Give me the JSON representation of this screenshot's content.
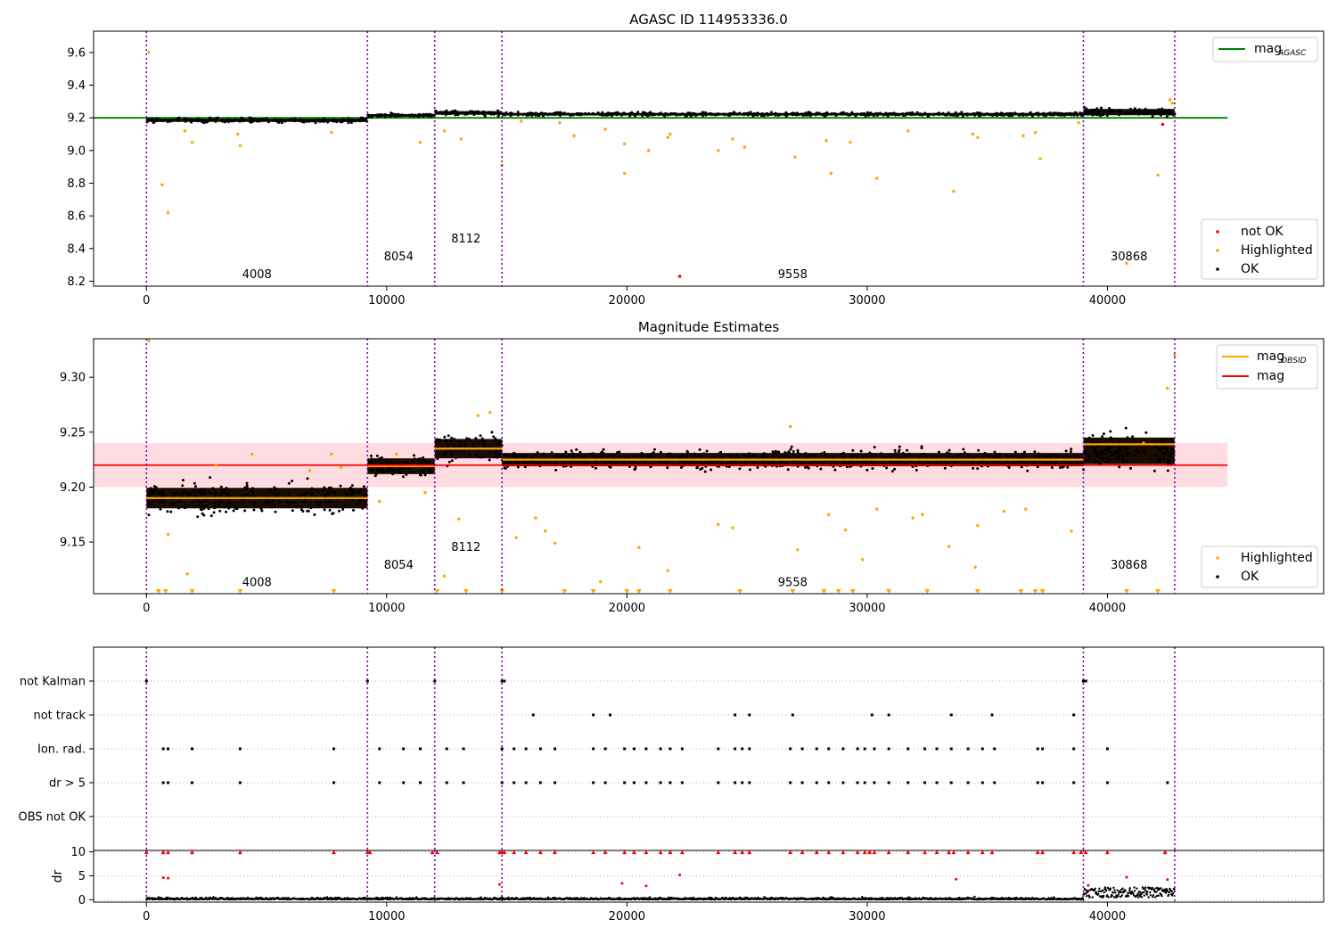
{
  "figure": {
    "background": "#ffffff"
  },
  "chart_data": [
    {
      "id": "agasc",
      "type": "scatter",
      "title": "AGASC ID 114953336.0",
      "xlim": [
        -2200,
        49000
      ],
      "ylim": [
        8.17,
        9.73
      ],
      "x_ticks": [
        0,
        10000,
        20000,
        30000,
        40000
      ],
      "y_ticks": [
        8.2,
        8.4,
        8.6,
        8.8,
        9.0,
        9.2,
        9.4,
        9.6
      ],
      "y_decimals": 1,
      "obs_boundaries": [
        0,
        9200,
        12000,
        14800,
        39000,
        42800
      ],
      "obsid_labels": [
        {
          "text": "4008",
          "x": 4600,
          "y": 8.24
        },
        {
          "text": "8054",
          "x": 10500,
          "y": 8.35
        },
        {
          "text": "8112",
          "x": 13300,
          "y": 8.46
        },
        {
          "text": "9558",
          "x": 26900,
          "y": 8.24
        },
        {
          "text": "30868",
          "x": 40900,
          "y": 8.35
        }
      ],
      "ok_segments": [
        {
          "x0": 0,
          "x1": 9200,
          "center": 9.185,
          "half_width": 0.018
        },
        {
          "x0": 9200,
          "x1": 12000,
          "center": 9.215,
          "half_width": 0.014
        },
        {
          "x0": 12000,
          "x1": 14800,
          "center": 9.23,
          "half_width": 0.02
        },
        {
          "x0": 14800,
          "x1": 39000,
          "center": 9.222,
          "half_width": 0.014
        },
        {
          "x0": 39000,
          "x1": 42800,
          "center": 9.235,
          "half_width": 0.035
        }
      ],
      "highlighted_points": [
        [
          100,
          9.6
        ],
        [
          650,
          8.79
        ],
        [
          900,
          8.62
        ],
        [
          1600,
          9.12
        ],
        [
          1900,
          9.05
        ],
        [
          3800,
          9.1
        ],
        [
          3900,
          9.03
        ],
        [
          7700,
          9.11
        ],
        [
          11400,
          9.05
        ],
        [
          12400,
          9.12
        ],
        [
          13100,
          9.07
        ],
        [
          14800,
          8.91
        ],
        [
          15600,
          9.18
        ],
        [
          17200,
          9.17
        ],
        [
          17800,
          9.09
        ],
        [
          19100,
          9.13
        ],
        [
          19900,
          9.04
        ],
        [
          19900,
          8.86
        ],
        [
          20900,
          9.0
        ],
        [
          21700,
          9.08
        ],
        [
          21800,
          9.1
        ],
        [
          23800,
          9.0
        ],
        [
          24400,
          9.07
        ],
        [
          24900,
          9.02
        ],
        [
          27000,
          8.96
        ],
        [
          28300,
          9.06
        ],
        [
          28500,
          8.86
        ],
        [
          29300,
          9.05
        ],
        [
          30400,
          8.83
        ],
        [
          31700,
          9.12
        ],
        [
          33600,
          8.75
        ],
        [
          34400,
          9.1
        ],
        [
          34600,
          9.08
        ],
        [
          36500,
          9.09
        ],
        [
          37000,
          9.11
        ],
        [
          37200,
          8.95
        ],
        [
          38800,
          9.17
        ],
        [
          40800,
          8.31
        ],
        [
          42100,
          8.85
        ],
        [
          42600,
          9.31
        ],
        [
          42700,
          9.29
        ]
      ],
      "not_ok_points": [
        [
          22200,
          8.23
        ],
        [
          42300,
          9.16
        ]
      ],
      "reference_lines": [
        {
          "label": "mag",
          "subscript": "AGASC",
          "y": 9.2,
          "x_range": [
            -2200,
            45000
          ],
          "color": "#008000"
        }
      ],
      "legend_upper": {
        "placement": "top-right",
        "entries": [
          {
            "label": "mag",
            "subscript": "AGASC",
            "color": "#008000"
          }
        ]
      },
      "legend_lower": {
        "placement": "bottom-right",
        "entries": [
          {
            "label": "not OK",
            "color": "#ff0000"
          },
          {
            "label": "Highlighted",
            "color": "#ffa500"
          },
          {
            "label": "OK",
            "color": "#000000"
          }
        ]
      }
    },
    {
      "id": "estimates",
      "type": "scatter",
      "title": "Magnitude Estimates",
      "xlim": [
        -2200,
        49000
      ],
      "ylim": [
        9.103,
        9.335
      ],
      "x_ticks": [
        0,
        10000,
        20000,
        30000,
        40000
      ],
      "y_ticks": [
        9.15,
        9.2,
        9.25,
        9.3
      ],
      "y_decimals": 2,
      "obs_boundaries": [
        0,
        9200,
        12000,
        14800,
        39000,
        42800
      ],
      "obsid_labels": [
        {
          "text": "4008",
          "x": 4600,
          "y": 9.113
        },
        {
          "text": "8054",
          "x": 10500,
          "y": 9.129
        },
        {
          "text": "8112",
          "x": 13300,
          "y": 9.145
        },
        {
          "text": "9558",
          "x": 26900,
          "y": 9.113
        },
        {
          "text": "30868",
          "x": 40900,
          "y": 9.129
        }
      ],
      "ok_segments": [
        {
          "x0": 0,
          "x1": 9200,
          "center": 9.19,
          "half_width": 0.017
        },
        {
          "x0": 9200,
          "x1": 12000,
          "center": 9.219,
          "half_width": 0.013
        },
        {
          "x0": 12000,
          "x1": 14800,
          "center": 9.235,
          "half_width": 0.016
        },
        {
          "x0": 14800,
          "x1": 39000,
          "center": 9.225,
          "half_width": 0.011
        },
        {
          "x0": 39000,
          "x1": 42800,
          "center": 9.233,
          "half_width": 0.022
        }
      ],
      "obsid_means": [
        [
          0,
          9200,
          9.19
        ],
        [
          9200,
          12000,
          9.219
        ],
        [
          12000,
          14800,
          9.235
        ],
        [
          14800,
          39000,
          9.225
        ],
        [
          39000,
          42800,
          9.239
        ]
      ],
      "mag_band": {
        "y": 9.22,
        "low": 9.2,
        "high": 9.24,
        "x_range": [
          -2200,
          45000
        ],
        "fill": "#ffc0c8"
      },
      "highlighted_points": [
        [
          100,
          9.333
        ],
        [
          900,
          9.157
        ],
        [
          1700,
          9.121
        ],
        [
          2900,
          9.22
        ],
        [
          4400,
          9.23
        ],
        [
          6800,
          9.215
        ],
        [
          7700,
          9.23
        ],
        [
          8100,
          9.218
        ],
        [
          9700,
          9.187
        ],
        [
          10400,
          9.23
        ],
        [
          11600,
          9.195
        ],
        [
          12400,
          9.119
        ],
        [
          13000,
          9.171
        ],
        [
          13800,
          9.265
        ],
        [
          14300,
          9.268
        ],
        [
          15400,
          9.154
        ],
        [
          16200,
          9.172
        ],
        [
          16600,
          9.16
        ],
        [
          17000,
          9.149
        ],
        [
          18900,
          9.114
        ],
        [
          20500,
          9.145
        ],
        [
          21700,
          9.124
        ],
        [
          23800,
          9.166
        ],
        [
          24400,
          9.163
        ],
        [
          26800,
          9.255
        ],
        [
          27100,
          9.143
        ],
        [
          28400,
          9.175
        ],
        [
          29100,
          9.161
        ],
        [
          29800,
          9.134
        ],
        [
          30400,
          9.18
        ],
        [
          31900,
          9.172
        ],
        [
          32300,
          9.175
        ],
        [
          33400,
          9.146
        ],
        [
          34600,
          9.165
        ],
        [
          34500,
          9.127
        ],
        [
          35700,
          9.178
        ],
        [
          36600,
          9.18
        ],
        [
          38500,
          9.16
        ],
        [
          41500,
          9.24
        ],
        [
          42500,
          9.29
        ],
        [
          42800,
          9.32
        ]
      ],
      "floor_markers": [
        500,
        800,
        1900,
        3900,
        7800,
        12100,
        13300,
        14800,
        17400,
        18600,
        20000,
        20500,
        21800,
        24700,
        26900,
        28200,
        28800,
        29400,
        30900,
        32500,
        34600,
        36400,
        37000,
        37300,
        40800,
        42100
      ],
      "legend_upper": {
        "placement": "top-right",
        "entries": [
          {
            "label": "mag",
            "subscript": "OBSID",
            "color": "#ffa500"
          },
          {
            "label": "mag",
            "subscript": "",
            "color": "#ff0000"
          }
        ]
      },
      "legend_lower": {
        "placement": "bottom-right",
        "entries": [
          {
            "label": "Highlighted",
            "color": "#ffa500"
          },
          {
            "label": "OK",
            "color": "#000000"
          }
        ]
      }
    },
    {
      "id": "flags",
      "type": "scatter",
      "title": "",
      "xlim": [
        -2200,
        49000
      ],
      "categories": [
        "not Kalman",
        "not track",
        "Ion. rad.",
        "dr > 5",
        "OBS not OK"
      ],
      "obs_boundaries": [
        0,
        9200,
        12000,
        14800,
        39000,
        42800
      ],
      "flag_points": {
        "not Kalman": [
          0,
          9200,
          12000,
          14800,
          14900,
          39000,
          39100
        ],
        "not track": [
          16100,
          18600,
          19300,
          24500,
          25100,
          26900,
          30200,
          30900,
          33500,
          35200,
          38600
        ],
        "Ion. rad.": [
          700,
          900,
          1900,
          3900,
          7800,
          9700,
          10700,
          11400,
          12500,
          13200,
          14800,
          15300,
          15800,
          16400,
          17000,
          18600,
          19100,
          19900,
          20300,
          20800,
          21400,
          21800,
          22300,
          23800,
          24500,
          24800,
          25100,
          26800,
          27300,
          27900,
          28400,
          29000,
          29600,
          29900,
          30300,
          30900,
          31700,
          32400,
          32900,
          33500,
          34200,
          34800,
          35300,
          37100,
          37300,
          38600,
          40000
        ],
        "dr > 5": [
          700,
          900,
          1900,
          3900,
          7800,
          9700,
          10700,
          11400,
          12500,
          13200,
          14800,
          15300,
          15800,
          16400,
          17000,
          18600,
          19100,
          19900,
          20300,
          20800,
          21400,
          21800,
          22300,
          23800,
          24500,
          24800,
          25100,
          26800,
          27300,
          27900,
          28400,
          29000,
          29600,
          29900,
          30300,
          30900,
          31700,
          32400,
          32900,
          33500,
          34200,
          34800,
          35300,
          37100,
          37300,
          38600,
          40000,
          42500
        ],
        "OBS not OK": []
      }
    },
    {
      "id": "dr",
      "type": "scatter",
      "title": "",
      "ylabel": "dr",
      "xlim": [
        -2200,
        49000
      ],
      "ylim": [
        -0.5,
        10.3
      ],
      "x_ticks": [
        0,
        10000,
        20000,
        30000,
        40000
      ],
      "y_ticks": [
        0,
        5,
        10
      ],
      "obs_boundaries": [
        0,
        9200,
        12000,
        14800,
        39000,
        42800
      ],
      "clipped_x": [
        0,
        700,
        900,
        1900,
        3900,
        7800,
        9200,
        9300,
        11900,
        12100,
        14700,
        14800,
        14900,
        15300,
        15800,
        16400,
        17000,
        18600,
        19100,
        19900,
        20300,
        20800,
        21400,
        21800,
        22300,
        23800,
        24500,
        24800,
        25100,
        26800,
        27300,
        27900,
        28400,
        29000,
        29600,
        29900,
        30100,
        30300,
        30900,
        31700,
        32400,
        32900,
        33400,
        33600,
        34200,
        34800,
        35200,
        37100,
        37300,
        38600,
        38900,
        39100,
        40000,
        42400
      ],
      "mid_points": [
        [
          700,
          4.6
        ],
        [
          900,
          4.5
        ],
        [
          14700,
          3.2
        ],
        [
          19800,
          3.4
        ],
        [
          20800,
          2.9
        ],
        [
          22200,
          5.2
        ],
        [
          33700,
          4.3
        ],
        [
          39200,
          3.0
        ],
        [
          40800,
          4.7
        ],
        [
          42500,
          4.2
        ]
      ]
    }
  ]
}
